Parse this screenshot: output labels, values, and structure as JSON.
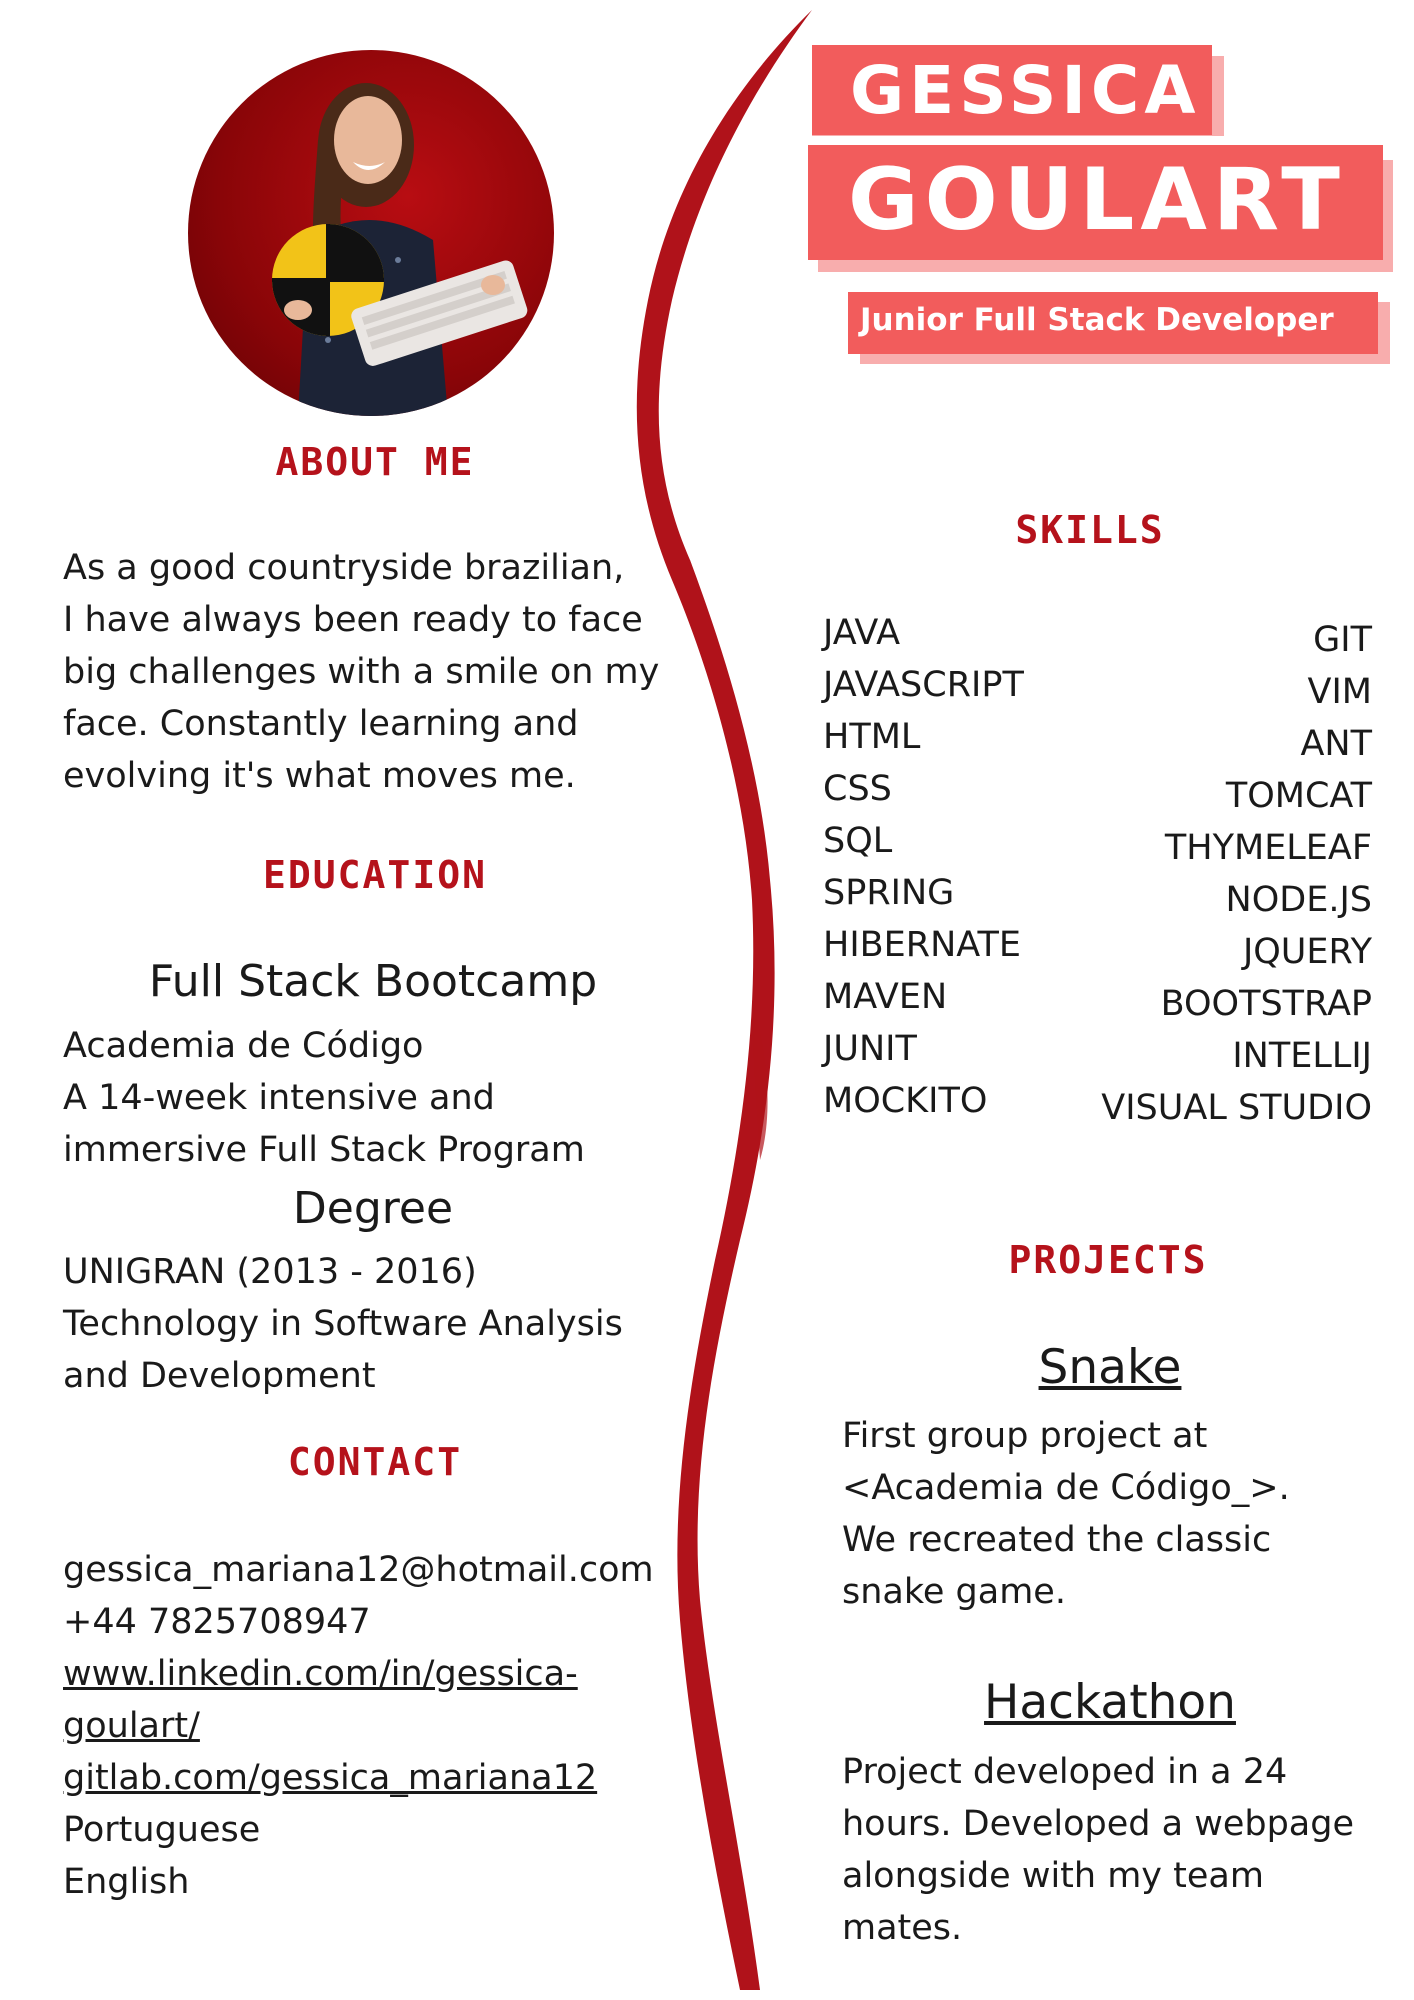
{
  "header": {
    "first_name": "GESSICA",
    "last_name": "GOULART",
    "role": "Junior Full Stack Developer",
    "accent_color": "#f25c5c"
  },
  "about": {
    "title": "ABOUT ME",
    "lines": [
      "As a good countryside brazilian,",
      "I have always been ready to face",
      "big challenges with a smile on my",
      "face. Constantly learning and",
      "evolving it's what moves me."
    ]
  },
  "education": {
    "title": "EDUCATION",
    "bootcamp": {
      "heading": "Full Stack Bootcamp",
      "lines": [
        "Academia de Código",
        "A 14-week intensive and",
        "immersive Full Stack Program"
      ]
    },
    "degree": {
      "heading": "Degree",
      "lines": [
        "UNIGRAN (2013 - 2016)",
        "Technology in Software Analysis",
        "and Development"
      ]
    }
  },
  "contact": {
    "title": "CONTACT",
    "email": "gessica_mariana12@hotmail.com",
    "phone": "+44 7825708947",
    "linkedin_line1": "www.linkedin.com/in/gessica-",
    "linkedin_line2": "goulart/",
    "gitlab": "gitlab.com/gessica_mariana12",
    "languages": [
      "Portuguese",
      "English"
    ]
  },
  "skills": {
    "title": "SKILLS",
    "left": [
      "JAVA",
      "JAVASCRIPT",
      "HTML",
      "CSS",
      "SQL",
      "SPRING",
      "HIBERNATE",
      "MAVEN",
      "JUNIT",
      "MOCKITO"
    ],
    "right": [
      "GIT",
      "VIM",
      "ANT",
      "TOMCAT",
      "THYMELEAF",
      "NODE.JS",
      "JQUERY",
      "BOOTSTRAP",
      "INTELLIJ",
      "VISUAL STUDIO"
    ]
  },
  "projects": {
    "title": "PROJECTS",
    "items": [
      {
        "name": "Snake",
        "lines": [
          "First group project at",
          "<Academia de Código_>.",
          "We recreated the classic",
          "snake game."
        ]
      },
      {
        "name": "Hackathon",
        "lines": [
          "Project developed in a 24",
          "hours. Developed a webpage",
          "alongside with my team",
          "mates."
        ]
      }
    ]
  },
  "colors": {
    "section_title": "#b5121b",
    "brush": "#b0121a"
  }
}
